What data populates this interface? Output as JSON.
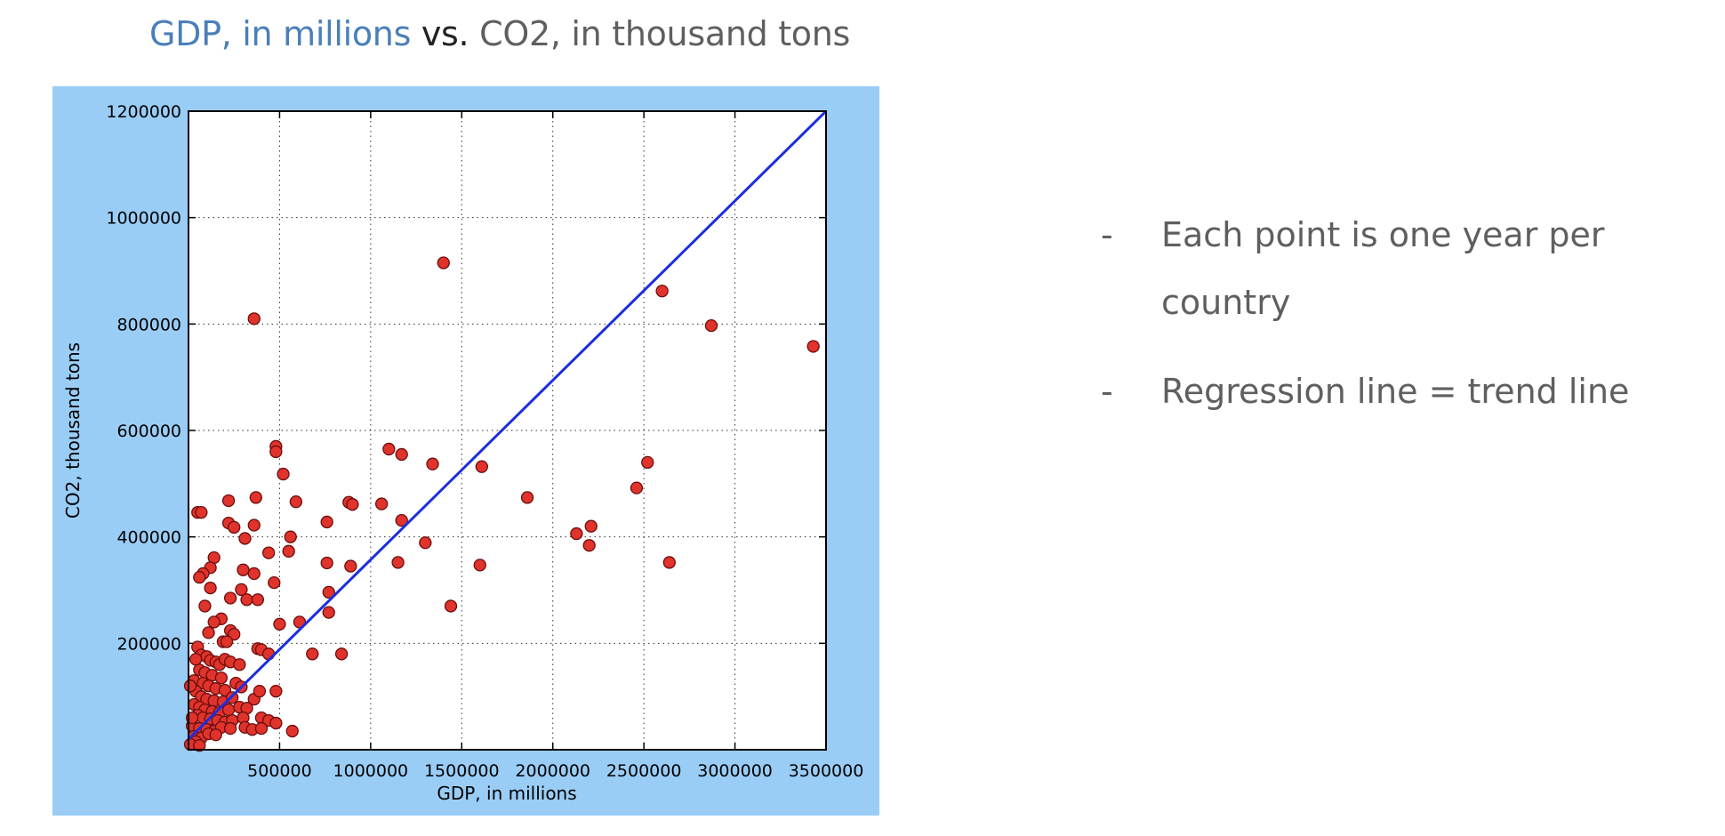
{
  "title": {
    "part_a": "GDP,  in millions",
    "part_b": " vs.",
    "part_c": " CO2, in thousand tons"
  },
  "colors": {
    "title_gdp": "#4a7fb9",
    "title_vs": "#222222",
    "title_co2": "#5f5f5f",
    "frame": "#9acdf6",
    "point_fill": "#e0332b",
    "point_stroke": "#6b0e0e",
    "regression": "#1c2ee0",
    "bullet_text": "#5f5f5f"
  },
  "bullets": {
    "marker": "-",
    "items": [
      "Each point is one year per country",
      "Regression line = trend line"
    ]
  },
  "chart_data": {
    "type": "scatter",
    "title": "",
    "xlabel": "GDP, in millions",
    "ylabel": "CO2, thousand tons",
    "xlim": [
      0,
      3500000
    ],
    "ylim": [
      0,
      1200000
    ],
    "x_ticks": [
      500000,
      1000000,
      1500000,
      2000000,
      2500000,
      3000000,
      3500000
    ],
    "x_tick_labels": [
      "500000",
      "1000000",
      "1500000",
      "2000000",
      "2500000",
      "3000000",
      "3500000"
    ],
    "y_ticks": [
      200000,
      400000,
      600000,
      800000,
      1000000,
      1200000
    ],
    "y_tick_labels": [
      "200000",
      "400000",
      "600000",
      "800000",
      "1000000",
      "1200000"
    ],
    "grid": true,
    "grid_style": "dotted",
    "regression_line": {
      "x": [
        0,
        3500000
      ],
      "y": [
        20000,
        1200000
      ]
    },
    "points": [
      [
        1400000,
        915000
      ],
      [
        2600000,
        862000
      ],
      [
        2870000,
        797000
      ],
      [
        3430000,
        758000
      ],
      [
        360000,
        810000
      ],
      [
        480000,
        570000
      ],
      [
        480000,
        560000
      ],
      [
        1100000,
        565000
      ],
      [
        1170000,
        555000
      ],
      [
        1340000,
        537000
      ],
      [
        1610000,
        532000
      ],
      [
        2520000,
        540000
      ],
      [
        520000,
        518000
      ],
      [
        2460000,
        492000
      ],
      [
        1860000,
        474000
      ],
      [
        880000,
        465000
      ],
      [
        900000,
        461000
      ],
      [
        1060000,
        462000
      ],
      [
        590000,
        466000
      ],
      [
        370000,
        474000
      ],
      [
        220000,
        468000
      ],
      [
        50000,
        446000
      ],
      [
        70000,
        446000
      ],
      [
        1170000,
        431000
      ],
      [
        760000,
        428000
      ],
      [
        220000,
        426000
      ],
      [
        250000,
        418000
      ],
      [
        360000,
        422000
      ],
      [
        2210000,
        420000
      ],
      [
        2130000,
        406000
      ],
      [
        560000,
        400000
      ],
      [
        310000,
        397000
      ],
      [
        1300000,
        389000
      ],
      [
        2200000,
        384000
      ],
      [
        550000,
        373000
      ],
      [
        440000,
        370000
      ],
      [
        140000,
        361000
      ],
      [
        760000,
        351000
      ],
      [
        1150000,
        352000
      ],
      [
        1600000,
        347000
      ],
      [
        2640000,
        352000
      ],
      [
        890000,
        345000
      ],
      [
        120000,
        342000
      ],
      [
        300000,
        338000
      ],
      [
        80000,
        331000
      ],
      [
        360000,
        331000
      ],
      [
        60000,
        324000
      ],
      [
        470000,
        314000
      ],
      [
        120000,
        304000
      ],
      [
        290000,
        301000
      ],
      [
        770000,
        296000
      ],
      [
        320000,
        282000
      ],
      [
        380000,
        282000
      ],
      [
        230000,
        285000
      ],
      [
        90000,
        270000
      ],
      [
        1440000,
        270000
      ],
      [
        770000,
        258000
      ],
      [
        180000,
        246000
      ],
      [
        140000,
        240000
      ],
      [
        500000,
        236000
      ],
      [
        610000,
        240000
      ],
      [
        230000,
        224000
      ],
      [
        250000,
        217000
      ],
      [
        110000,
        220000
      ],
      [
        190000,
        203000
      ],
      [
        210000,
        203000
      ],
      [
        380000,
        190000
      ],
      [
        400000,
        188000
      ],
      [
        440000,
        180000
      ],
      [
        680000,
        180000
      ],
      [
        840000,
        180000
      ],
      [
        50000,
        193000
      ],
      [
        70000,
        178000
      ],
      [
        100000,
        175000
      ],
      [
        120000,
        168000
      ],
      [
        150000,
        165000
      ],
      [
        170000,
        160000
      ],
      [
        200000,
        170000
      ],
      [
        230000,
        165000
      ],
      [
        280000,
        160000
      ],
      [
        60000,
        150000
      ],
      [
        90000,
        145000
      ],
      [
        130000,
        140000
      ],
      [
        180000,
        135000
      ],
      [
        30000,
        130000
      ],
      [
        80000,
        125000
      ],
      [
        110000,
        120000
      ],
      [
        150000,
        115000
      ],
      [
        200000,
        112000
      ],
      [
        260000,
        125000
      ],
      [
        290000,
        118000
      ],
      [
        40000,
        110000
      ],
      [
        70000,
        100000
      ],
      [
        100000,
        95000
      ],
      [
        140000,
        92000
      ],
      [
        190000,
        90000
      ],
      [
        240000,
        98000
      ],
      [
        360000,
        95000
      ],
      [
        390000,
        110000
      ],
      [
        480000,
        110000
      ],
      [
        30000,
        85000
      ],
      [
        60000,
        80000
      ],
      [
        90000,
        75000
      ],
      [
        130000,
        72000
      ],
      [
        170000,
        70000
      ],
      [
        220000,
        75000
      ],
      [
        280000,
        80000
      ],
      [
        320000,
        78000
      ],
      [
        50000,
        65000
      ],
      [
        80000,
        60000
      ],
      [
        120000,
        58000
      ],
      [
        160000,
        55000
      ],
      [
        200000,
        52000
      ],
      [
        240000,
        55000
      ],
      [
        300000,
        60000
      ],
      [
        400000,
        60000
      ],
      [
        440000,
        55000
      ],
      [
        480000,
        50000
      ],
      [
        20000,
        45000
      ],
      [
        60000,
        40000
      ],
      [
        100000,
        38000
      ],
      [
        140000,
        35000
      ],
      [
        180000,
        42000
      ],
      [
        230000,
        40000
      ],
      [
        310000,
        42000
      ],
      [
        350000,
        38000
      ],
      [
        400000,
        40000
      ],
      [
        570000,
        35000
      ],
      [
        30000,
        25000
      ],
      [
        70000,
        22000
      ],
      [
        110000,
        30000
      ],
      [
        150000,
        28000
      ],
      [
        40000,
        15000
      ],
      [
        10000,
        10000
      ],
      [
        60000,
        8000
      ],
      [
        20000,
        60000
      ],
      [
        10000,
        120000
      ],
      [
        40000,
        170000
      ]
    ]
  }
}
